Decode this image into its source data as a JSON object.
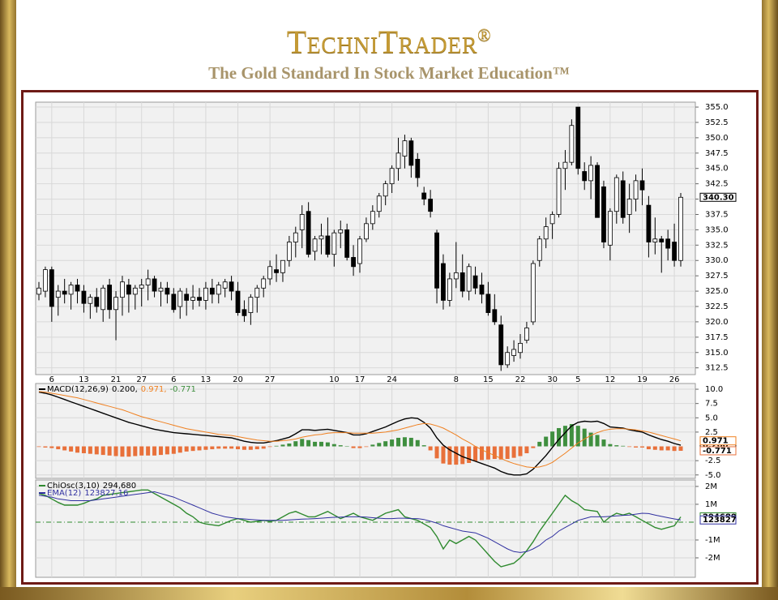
{
  "header": {
    "title": "TechniTrader",
    "trademark": "®",
    "subtitle": "The Gold Standard In Stock Market Education™"
  },
  "chart_data": [
    {
      "type": "candlestick",
      "categories": [
        null,
        null,
        "6",
        null,
        null,
        null,
        null,
        "13",
        null,
        null,
        null,
        null,
        "21",
        null,
        null,
        null,
        "27",
        null,
        null,
        null,
        null,
        "6",
        null,
        null,
        null,
        null,
        "13",
        null,
        null,
        null,
        null,
        "20",
        null,
        null,
        null,
        null,
        "27",
        null,
        null,
        null,
        null,
        null,
        null,
        null,
        null,
        null,
        "10",
        null,
        null,
        null,
        "17",
        null,
        null,
        null,
        null,
        "24",
        null,
        null,
        null,
        null,
        null,
        null,
        null,
        null,
        null,
        "8",
        null,
        null,
        null,
        null,
        "15",
        null,
        null,
        null,
        null,
        "22",
        null,
        null,
        null,
        null,
        "30",
        null,
        null,
        null,
        "5",
        null,
        null,
        null,
        null,
        "12",
        null,
        null,
        null,
        null,
        "19",
        null,
        null,
        null,
        null,
        "26",
        null
      ],
      "open": [
        324.5,
        325,
        328.5,
        324,
        325,
        324.5,
        326,
        325,
        323,
        324,
        322,
        326,
        322,
        324,
        326,
        324.5,
        325.5,
        326,
        327,
        325,
        325.5,
        324.5,
        322.5,
        324.5,
        323.5,
        324,
        323.5,
        325.5,
        324.5,
        325.5,
        326.5,
        325,
        322,
        321.5,
        324,
        325.5,
        327,
        328.5,
        328,
        330,
        333,
        335,
        338,
        331.5,
        333.5,
        334,
        331,
        334.5,
        335,
        330.5,
        329.5,
        333.5,
        336,
        338,
        340.5,
        342.5,
        345,
        347,
        349.5,
        346.5,
        341,
        340,
        334.5,
        329.5,
        323.5,
        327,
        328,
        325,
        327.5,
        326,
        324.5,
        322,
        319.5,
        313,
        314.5,
        315,
        317,
        320,
        330,
        333.5,
        336,
        337.5,
        345,
        346,
        355,
        344.5,
        343,
        345.5,
        342,
        332.5,
        338,
        343,
        337.5,
        340,
        343,
        339,
        333,
        333.5,
        333.5,
        333,
        330
      ],
      "high": [
        326.5,
        329,
        329,
        326,
        327,
        326.5,
        327,
        326,
        324.5,
        325.5,
        326,
        327,
        325,
        327.5,
        327,
        326,
        327,
        328.5,
        327.5,
        326.5,
        326.5,
        325.5,
        325.5,
        325.5,
        326,
        325.5,
        326.5,
        327,
        326.5,
        327,
        327.5,
        326.5,
        323.5,
        324.5,
        326,
        327.5,
        330,
        331,
        330,
        334,
        335.5,
        339,
        339.5,
        334,
        336,
        337,
        335,
        336.5,
        336,
        332.5,
        334,
        337,
        339,
        341,
        343,
        345.5,
        350,
        350.5,
        350,
        347.5,
        342,
        341.5,
        335,
        331,
        328,
        333,
        331,
        329.5,
        329,
        328,
        326.5,
        324.5,
        321,
        316,
        317,
        318,
        320,
        330,
        334,
        337,
        338,
        346,
        348,
        353,
        355,
        346,
        347,
        346,
        343,
        338.5,
        344,
        344.5,
        342.5,
        344,
        345,
        340.5,
        337,
        334,
        335,
        336,
        341
      ],
      "low": [
        323.5,
        324,
        320,
        321,
        323,
        322,
        323,
        321.5,
        320.5,
        321.5,
        320,
        320.5,
        317,
        321,
        321.5,
        322,
        322.5,
        323.5,
        324,
        322.5,
        323,
        321.5,
        320.5,
        321,
        322,
        322.5,
        322,
        323,
        323,
        324,
        323.5,
        321,
        320,
        319.5,
        321.5,
        324,
        326,
        326.5,
        326.5,
        329,
        330.5,
        332,
        330.5,
        330,
        331,
        330.5,
        329,
        332,
        330,
        327.5,
        328,
        333,
        335,
        337,
        339,
        341,
        343,
        345,
        343.5,
        342,
        339,
        337,
        323,
        322,
        322.5,
        325.5,
        324,
        323.5,
        324.5,
        323,
        321,
        319.5,
        312,
        312.5,
        313.5,
        314,
        316.5,
        319.5,
        329,
        332,
        333.5,
        337,
        341.5,
        345.5,
        344,
        341.5,
        340,
        337,
        332,
        330,
        336,
        336,
        334.5,
        338,
        339,
        330.5,
        331,
        328,
        330,
        329,
        329
      ],
      "close": [
        325.5,
        328.5,
        322.5,
        325,
        324.5,
        326,
        325,
        323,
        324,
        322.5,
        325.5,
        322,
        324,
        326.5,
        324.5,
        325.5,
        326,
        327,
        325,
        325.5,
        324.5,
        322,
        325,
        323.5,
        324,
        323.5,
        325.5,
        324.5,
        326,
        326.5,
        325,
        321.5,
        321,
        324,
        325.5,
        327,
        329,
        328,
        330,
        333,
        334.5,
        337.5,
        331,
        333.5,
        334,
        331,
        334.5,
        335,
        330.5,
        329,
        333.5,
        336,
        338,
        340.5,
        342.5,
        345,
        347.5,
        349.5,
        345.5,
        343.5,
        340,
        338,
        325.5,
        323.5,
        327,
        328,
        325,
        329,
        325.5,
        324.5,
        321.5,
        320,
        313,
        315,
        315.5,
        316.5,
        319,
        329.5,
        333.5,
        335.5,
        337.5,
        345,
        346,
        352,
        345,
        343,
        345.5,
        337,
        333,
        338,
        343.5,
        337,
        340,
        343,
        341.5,
        333,
        333.5,
        333,
        332,
        330,
        340.3
      ],
      "last_label": "340.30",
      "up_color": "#ffffff",
      "down_color": "#000000",
      "ylim": [
        311.4,
        355.8
      ],
      "yticks": [
        312.5,
        {
          "value": 315,
          "label": "315.0"
        },
        317.5,
        {
          "value": 320,
          "label": "320.0"
        },
        322.5,
        {
          "value": 325,
          "label": "325.0"
        },
        327.5,
        {
          "value": 330,
          "label": "330.0"
        },
        332.5,
        {
          "value": 335,
          "label": "335.0"
        },
        337.5,
        {
          "value": 340,
          "label": "340.0"
        },
        342.5,
        {
          "value": 345,
          "label": "345.0"
        },
        347.5,
        {
          "value": 350,
          "label": "350.0"
        },
        352.5,
        {
          "value": 355,
          "label": "355.0"
        }
      ],
      "grid": true
    },
    {
      "type": "indicator",
      "title": "MACD(12,26,9)",
      "ylim": [
        -5.6,
        11.0
      ],
      "yticks": [
        {
          "value": 10,
          "label": "10.0"
        },
        7.5,
        {
          "value": 5,
          "label": "5.0"
        },
        2.5,
        -2.5,
        {
          "value": -5,
          "label": "-5.0"
        }
      ],
      "grid": true,
      "series": [
        {
          "type": "line",
          "color": "#000000",
          "legend_label": "0.200,",
          "axis_label": "0.200",
          "values": [
            9.5,
            9.3,
            9.0,
            8.6,
            8.2,
            7.8,
            7.4,
            7.0,
            6.6,
            6.2,
            5.8,
            5.4,
            5.0,
            4.6,
            4.2,
            3.9,
            3.6,
            3.3,
            3.0,
            2.8,
            2.6,
            2.4,
            2.3,
            2.2,
            2.1,
            2.0,
            1.9,
            1.8,
            1.7,
            1.6,
            1.5,
            1.2,
            0.9,
            0.7,
            0.6,
            0.6,
            0.8,
            1.0,
            1.3,
            1.6,
            2.2,
            2.9,
            2.9,
            2.8,
            2.9,
            3.0,
            2.8,
            2.6,
            2.4,
            2.0,
            2.0,
            2.2,
            2.6,
            3.0,
            3.4,
            3.9,
            4.4,
            4.8,
            5.0,
            4.9,
            4.2,
            3.2,
            1.5,
            0.2,
            -0.6,
            -1.2,
            -1.8,
            -2.2,
            -2.6,
            -3.0,
            -3.4,
            -3.8,
            -4.4,
            -4.8,
            -5.0,
            -5.0,
            -4.8,
            -4.0,
            -2.8,
            -1.6,
            -0.2,
            1.2,
            2.4,
            3.6,
            4.2,
            4.4,
            4.3,
            4.4,
            4.0,
            3.4,
            3.3,
            3.2,
            2.9,
            2.7,
            2.5,
            2.0,
            1.6,
            1.2,
            0.9,
            0.5,
            0.2
          ]
        },
        {
          "type": "line",
          "color": "#f08020",
          "legend_label": "0.971,",
          "axis_label": "0.971",
          "values": [
            9.6,
            9.5,
            9.3,
            9.1,
            8.9,
            8.7,
            8.5,
            8.2,
            7.9,
            7.6,
            7.3,
            7.0,
            6.7,
            6.4,
            6.0,
            5.6,
            5.2,
            4.9,
            4.6,
            4.3,
            4.0,
            3.7,
            3.4,
            3.1,
            2.9,
            2.7,
            2.5,
            2.3,
            2.1,
            2.0,
            1.9,
            1.7,
            1.5,
            1.3,
            1.1,
            1.0,
            0.9,
            0.9,
            1.0,
            1.1,
            1.3,
            1.6,
            1.8,
            2.0,
            2.1,
            2.3,
            2.4,
            2.4,
            2.4,
            2.3,
            2.3,
            2.3,
            2.3,
            2.4,
            2.5,
            2.7,
            2.9,
            3.2,
            3.5,
            3.8,
            4.0,
            3.9,
            3.6,
            3.2,
            2.6,
            2.0,
            1.3,
            0.7,
            0.0,
            -0.6,
            -1.1,
            -1.6,
            -2.1,
            -2.6,
            -3.0,
            -3.3,
            -3.6,
            -3.7,
            -3.6,
            -3.3,
            -2.8,
            -2.0,
            -1.2,
            -0.3,
            0.6,
            1.3,
            1.9,
            2.4,
            2.8,
            3.0,
            3.1,
            3.1,
            3.0,
            2.9,
            2.7,
            2.5,
            2.2,
            1.9,
            1.6,
            1.3,
            0.971
          ]
        },
        {
          "type": "bar",
          "color": "#3f8f3f",
          "neg_color": "#e8703a",
          "legend_label": "-0.771",
          "axis_label": "-0.771",
          "values": [
            -0.1,
            -0.2,
            -0.3,
            -0.5,
            -0.7,
            -0.9,
            -1.1,
            -1.2,
            -1.3,
            -1.4,
            -1.5,
            -1.6,
            -1.7,
            -1.8,
            -1.8,
            -1.7,
            -1.6,
            -1.6,
            -1.6,
            -1.5,
            -1.4,
            -1.3,
            -1.1,
            -0.9,
            -0.8,
            -0.7,
            -0.6,
            -0.5,
            -0.4,
            -0.4,
            -0.4,
            -0.5,
            -0.6,
            -0.6,
            -0.5,
            -0.4,
            -0.1,
            0.1,
            0.3,
            0.5,
            0.9,
            1.3,
            1.1,
            0.8,
            0.8,
            0.7,
            0.4,
            0.2,
            0.0,
            -0.3,
            -0.3,
            -0.1,
            0.3,
            0.6,
            0.9,
            1.2,
            1.5,
            1.6,
            1.5,
            1.1,
            0.2,
            -0.7,
            -2.1,
            -3.0,
            -3.2,
            -3.2,
            -3.1,
            -2.9,
            -2.6,
            -2.4,
            -2.3,
            -2.2,
            -2.3,
            -2.2,
            -2.0,
            -1.7,
            -1.2,
            -0.3,
            0.8,
            1.7,
            2.6,
            3.2,
            3.6,
            3.9,
            3.6,
            3.1,
            2.4,
            2.0,
            1.2,
            0.4,
            0.2,
            0.1,
            -0.1,
            -0.2,
            -0.2,
            -0.5,
            -0.6,
            -0.7,
            -0.7,
            -0.8,
            -0.771
          ]
        }
      ]
    },
    {
      "type": "indicator",
      "ylim": [
        -3090000,
        2360000
      ],
      "yticks": [
        {
          "value": 2000000,
          "label": "2M"
        },
        {
          "value": 1000000,
          "label": "1M"
        },
        {
          "value": -1000000,
          "label": "-1M"
        },
        {
          "value": -2000000,
          "label": "-2M"
        }
      ],
      "grid": true,
      "series": [
        {
          "type": "line",
          "name": "ChiOsc(3,10)",
          "color": "#2f8a2f",
          "legend_label": "294,680",
          "axis_label": "294680",
          "values": [
            1600000,
            1500000,
            1300000,
            1100000,
            950000,
            950000,
            950000,
            1050000,
            1200000,
            1300000,
            1500000,
            1550000,
            1600000,
            1650000,
            1700000,
            1750000,
            1800000,
            1800000,
            1600000,
            1400000,
            1200000,
            1000000,
            800000,
            500000,
            300000,
            0,
            -100000,
            -150000,
            -200000,
            -50000,
            100000,
            200000,
            100000,
            0,
            50000,
            100000,
            50000,
            100000,
            300000,
            500000,
            600000,
            450000,
            300000,
            300000,
            450000,
            600000,
            400000,
            200000,
            350000,
            500000,
            300000,
            200000,
            100000,
            300000,
            500000,
            600000,
            700000,
            300000,
            200000,
            100000,
            -100000,
            -300000,
            -800000,
            -1500000,
            -1000000,
            -1200000,
            -1000000,
            -800000,
            -1000000,
            -1400000,
            -1800000,
            -2200000,
            -2500000,
            -2400000,
            -2300000,
            -2000000,
            -1600000,
            -1100000,
            -500000,
            0,
            500000,
            1000000,
            1500000,
            1200000,
            1000000,
            700000,
            650000,
            600000,
            0,
            300000,
            500000,
            400000,
            500000,
            300000,
            100000,
            -100000,
            -300000,
            -400000,
            -300000,
            -200000,
            294680
          ]
        },
        {
          "type": "line",
          "name": "EMA(12)",
          "color": "#3030a0",
          "legend_label": "123827.16",
          "axis_label": "123827",
          "values": [
            1500000,
            1450000,
            1400000,
            1300000,
            1250000,
            1200000,
            1200000,
            1200000,
            1200000,
            1250000,
            1300000,
            1350000,
            1400000,
            1450000,
            1500000,
            1550000,
            1600000,
            1650000,
            1700000,
            1600000,
            1500000,
            1400000,
            1250000,
            1100000,
            950000,
            800000,
            650000,
            500000,
            400000,
            300000,
            250000,
            200000,
            180000,
            150000,
            120000,
            100000,
            100000,
            100000,
            100000,
            120000,
            150000,
            170000,
            180000,
            200000,
            220000,
            250000,
            270000,
            280000,
            300000,
            300000,
            300000,
            280000,
            250000,
            220000,
            200000,
            200000,
            220000,
            220000,
            200000,
            200000,
            150000,
            50000,
            -50000,
            -200000,
            -300000,
            -400000,
            -500000,
            -550000,
            -600000,
            -750000,
            -900000,
            -1100000,
            -1300000,
            -1500000,
            -1650000,
            -1700000,
            -1650000,
            -1500000,
            -1300000,
            -1000000,
            -800000,
            -500000,
            -300000,
            -100000,
            100000,
            200000,
            300000,
            300000,
            300000,
            320000,
            350000,
            380000,
            400000,
            450000,
            500000,
            480000,
            400000,
            320000,
            250000,
            180000,
            123827.16
          ]
        }
      ]
    }
  ]
}
